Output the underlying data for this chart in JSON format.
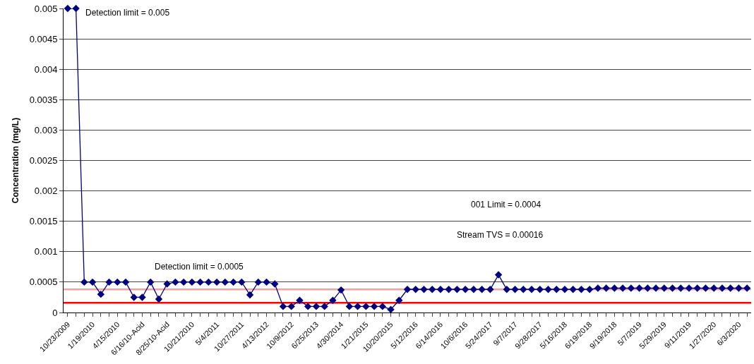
{
  "chart_data": {
    "type": "line",
    "ylabel": "Concentration (mg/L)",
    "categories": [
      "10/23/2009",
      null,
      null,
      "1/19/2010",
      null,
      null,
      "4/15/2010",
      null,
      null,
      "6/16/10-Acid",
      null,
      null,
      "8/25/10-Acid",
      null,
      null,
      "10/21/2010",
      null,
      null,
      "5/4/2011",
      null,
      null,
      "10/27/2011",
      null,
      null,
      "4/13/2012",
      null,
      null,
      "10/9/2012",
      null,
      null,
      "6/25/2013",
      null,
      null,
      "4/30/2014",
      null,
      null,
      "1/21/2015",
      null,
      null,
      "10/20/2015",
      null,
      null,
      "5/12/2016",
      null,
      null,
      "6/14/2016",
      null,
      null,
      "10/6/2016",
      null,
      null,
      "5/24/2017",
      null,
      null,
      "9/7/2017",
      null,
      null,
      "9/28/2017",
      null,
      null,
      "5/16/2018",
      null,
      null,
      "6/19/2018",
      null,
      null,
      "9/19/2018",
      null,
      null,
      "5/7/2019",
      null,
      null,
      "5/29/2019",
      null,
      null,
      "9/11/2019",
      null,
      null,
      "1/27/2020",
      null,
      null,
      "6/3/2020",
      null
    ],
    "series": [
      {
        "color": "#000080",
        "values": [
          0.005,
          0.005,
          0.0005,
          0.0005,
          0.0003,
          0.0005,
          0.0005,
          0.0005,
          0.00025,
          0.00025,
          0.0005,
          0.00022,
          0.00047,
          0.0005,
          0.0005,
          0.0005,
          0.0005,
          0.0005,
          0.0005,
          0.0005,
          0.0005,
          0.0005,
          0.00029,
          0.0005,
          0.0005,
          0.00047,
          0.0001,
          0.0001,
          0.0002,
          0.0001,
          0.0001,
          0.0001,
          0.0002,
          0.00037,
          0.0001,
          0.0001,
          0.0001,
          0.0001,
          0.0001,
          5e-05,
          0.0002,
          0.00038,
          0.00038,
          0.00038,
          0.00038,
          0.00038,
          0.00038,
          0.00038,
          0.00038,
          0.00038,
          0.00038,
          0.00038,
          0.00062,
          0.00038,
          0.00038,
          0.00038,
          0.00038,
          0.00038,
          0.00038,
          0.00038,
          0.00038,
          0.00038,
          0.00038,
          0.00038,
          0.0004,
          0.0004,
          0.0004,
          0.0004,
          0.0004,
          0.0004,
          0.0004,
          0.0004,
          0.0004,
          0.0004,
          0.0004,
          0.0004,
          0.0004,
          0.0004,
          0.0004,
          0.0004,
          0.0004,
          0.0004,
          0.0004
        ]
      }
    ],
    "ylim": [
      0,
      0.005
    ],
    "yticks": [
      0,
      0.0005,
      0.001,
      0.0015,
      0.002,
      0.0025,
      0.003,
      0.0035,
      0.004,
      0.0045,
      0.005
    ],
    "grid": "y",
    "marker": "diamond",
    "line_style": "solid",
    "legend": false,
    "ref_lines": [
      {
        "axis": "y",
        "value": 0.00038,
        "color": "#f4a0a0"
      },
      {
        "axis": "y",
        "value": 0.00016,
        "color": "#ff0000"
      }
    ],
    "annotations": [
      "Detection limit = 0.005",
      "Detection limit = 0.0005",
      "001 Limit = 0.0004",
      "Stream TVS = 0.00016"
    ]
  }
}
